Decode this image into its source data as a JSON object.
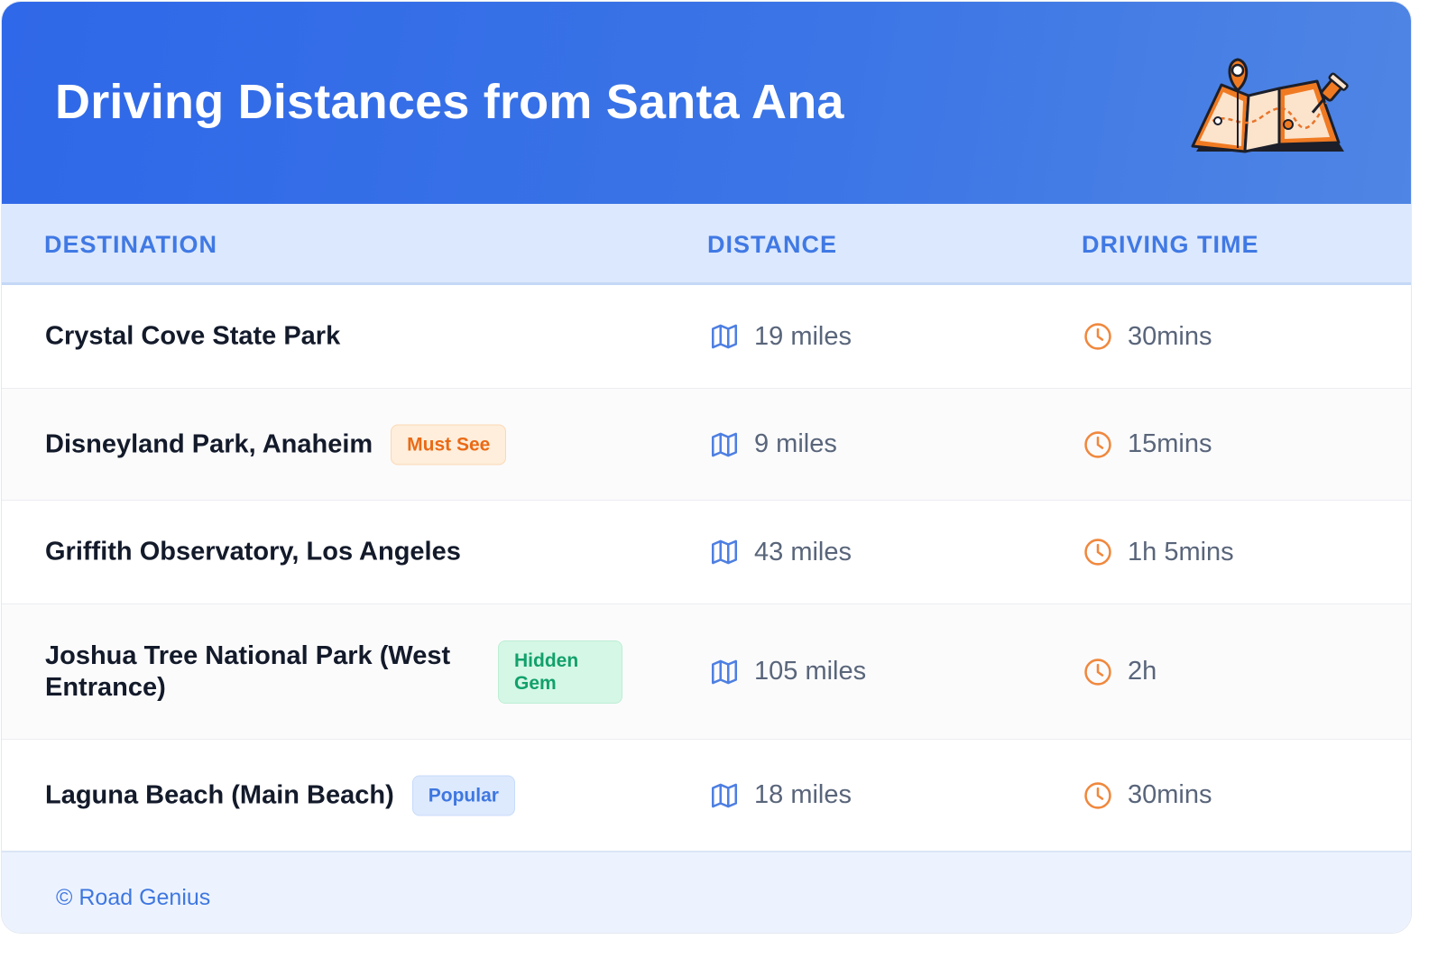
{
  "header": {
    "title": "Driving Distances from Santa Ana",
    "illustration_icon": "folded-map-with-pin-icon"
  },
  "columns": {
    "destination": "DESTINATION",
    "distance": "DISTANCE",
    "driving_time": "DRIVING TIME"
  },
  "rows": [
    {
      "destination": "Crystal Cove State Park",
      "badge": "",
      "distance": "19 miles",
      "time": "30mins"
    },
    {
      "destination": "Disneyland Park, Anaheim",
      "badge": "Must See",
      "distance": "9 miles",
      "time": "15mins"
    },
    {
      "destination": "Griffith Observatory, Los Angeles",
      "badge": "",
      "distance": "43 miles",
      "time": "1h 5mins"
    },
    {
      "destination": "Joshua Tree National Park (West Entrance)",
      "badge": "Hidden Gem",
      "distance": "105 miles",
      "time": "2h"
    },
    {
      "destination": "Laguna Beach (Main Beach)",
      "badge": "Popular",
      "distance": "18 miles",
      "time": "30mins"
    }
  ],
  "footer": {
    "credit": "© Road Genius"
  },
  "colors": {
    "header_gradient_start": "#2f68e8",
    "header_gradient_end": "#4f85e4",
    "column_header_bg": "#dce8fd",
    "accent_blue": "#4079e4",
    "accent_orange": "#ea6a16",
    "accent_green": "#12a16a"
  }
}
